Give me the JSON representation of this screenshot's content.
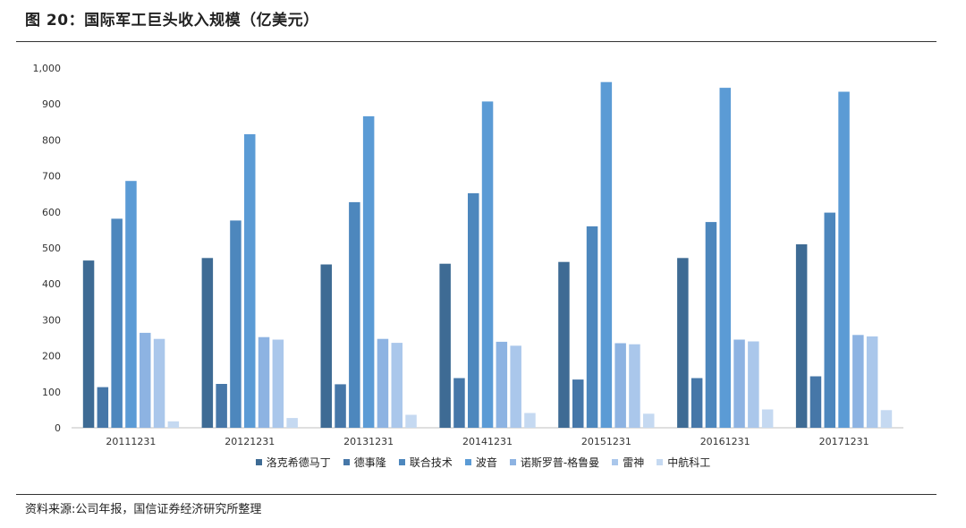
{
  "page": {
    "title": "图 20：国际军工巨头收入规模（亿美元）",
    "source": "资料来源:公司年报，国信证券经济研究所整理"
  },
  "chart_data": {
    "type": "bar",
    "categories": [
      "20111231",
      "20121231",
      "20131231",
      "20141231",
      "20151231",
      "20161231",
      "20171231"
    ],
    "y_ticks": [
      "0",
      "100",
      "200",
      "300",
      "400",
      "500",
      "600",
      "700",
      "800",
      "900",
      "1,000"
    ],
    "ylim": [
      0,
      1000
    ],
    "grid": false,
    "legend_position": "bottom",
    "series": [
      {
        "name": "洛克希德马丁",
        "color": "#3e6b94",
        "values": [
          465,
          472,
          454,
          456,
          461,
          472,
          510
        ]
      },
      {
        "name": "德事隆",
        "color": "#4677a8",
        "values": [
          113,
          122,
          121,
          138,
          134,
          138,
          143
        ]
      },
      {
        "name": "联合技术",
        "color": "#4d87bd",
        "values": [
          581,
          576,
          627,
          652,
          560,
          572,
          598
        ]
      },
      {
        "name": "波音",
        "color": "#5b9bd5",
        "values": [
          686,
          816,
          866,
          907,
          961,
          945,
          934
        ]
      },
      {
        "name": "诺斯罗普-格鲁曼",
        "color": "#8db3e2",
        "values": [
          264,
          252,
          247,
          239,
          235,
          245,
          258
        ]
      },
      {
        "name": "雷神",
        "color": "#aac7eb",
        "values": [
          247,
          245,
          236,
          228,
          232,
          240,
          254
        ]
      },
      {
        "name": "中航科工",
        "color": "#c5d9f1",
        "values": [
          18,
          27,
          36,
          41,
          39,
          51,
          49
        ]
      }
    ]
  }
}
